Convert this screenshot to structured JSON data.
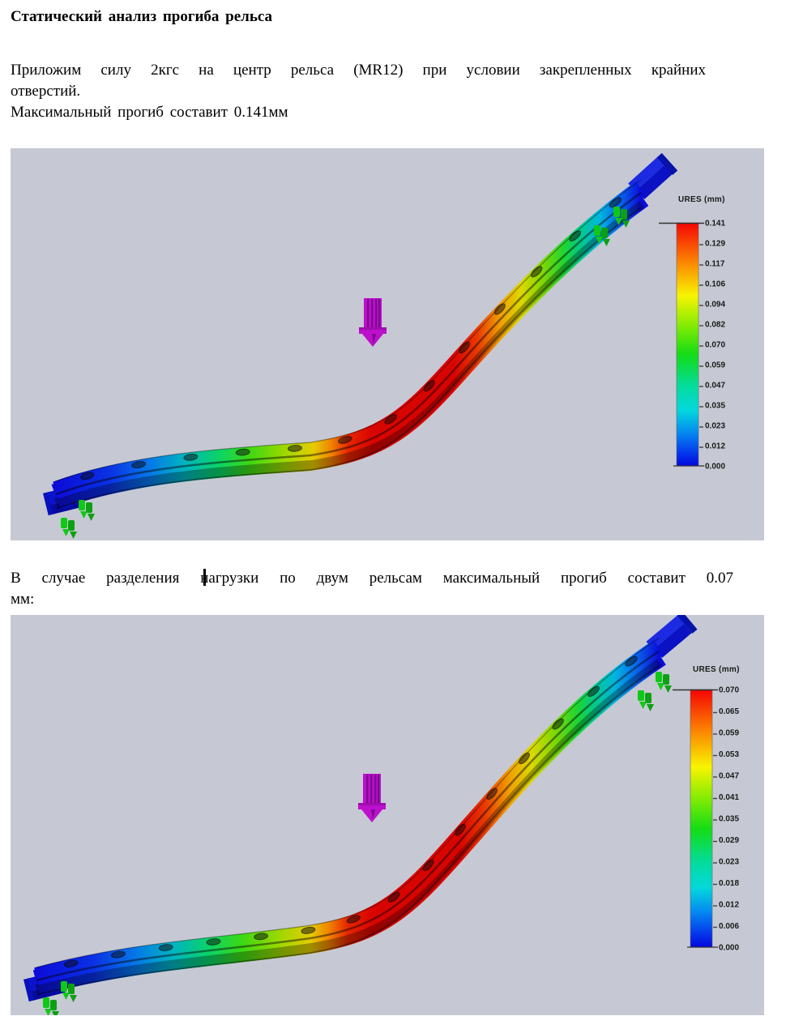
{
  "document": {
    "title": "Статический анализ прогиба рельса",
    "paragraph1": [
      "Приложим силу 2кгс на центр рельса (MR12) при условии закрепленных крайних",
      "отверстий.",
      "Максимальный прогиб составит 0.141мм"
    ],
    "paragraph2": [
      "В случае разделения нагрузки по двум рельсам максимальный прогиб составит 0.07",
      "мм:"
    ]
  },
  "fea_plots": [
    {
      "name": "single-rail-load",
      "legend_title": "URES (mm)",
      "legend_values": [
        "0.141",
        "0.129",
        "0.117",
        "0.106",
        "0.094",
        "0.082",
        "0.070",
        "0.059",
        "0.047",
        "0.035",
        "0.023",
        "0.012",
        "0.000"
      ],
      "max_deflection_mm": "0.141"
    },
    {
      "name": "load-split-two-rails",
      "legend_title": "URES (mm)",
      "legend_values": [
        "0.070",
        "0.065",
        "0.059",
        "0.053",
        "0.047",
        "0.041",
        "0.035",
        "0.029",
        "0.023",
        "0.018",
        "0.012",
        "0.006",
        "0.000"
      ],
      "max_deflection_mm": "0.070"
    }
  ],
  "colors": {
    "page_bg": "#ffffff",
    "text": "#000000",
    "plot_bg": "#c6c9d3",
    "legend_text": "#1a1a1a",
    "force_arrow": "#bc10cc",
    "force_arrow_dark": "#7e0a90",
    "fixture_green": "#10c818",
    "fixture_green_dark": "#0ca012",
    "end_cap_blue": "#0a14cc",
    "rail_spectrum": [
      [
        "0",
        "#0c0cd8"
      ],
      [
        "0.09",
        "#0a30e4"
      ],
      [
        "0.16",
        "#0678e8"
      ],
      [
        "0.22",
        "#00b4c0"
      ],
      [
        "0.28",
        "#0cd464"
      ],
      [
        "0.33",
        "#3cd814"
      ],
      [
        "0.39",
        "#9cd800"
      ],
      [
        "0.44",
        "#e4cc00"
      ],
      [
        "0.47",
        "#f08400"
      ],
      [
        "0.50",
        "#e62600"
      ],
      [
        "0.54",
        "#d80400"
      ],
      [
        "0.68",
        "#d80400"
      ],
      [
        "0.72",
        "#e83800"
      ],
      [
        "0.76",
        "#f0a000"
      ],
      [
        "0.795",
        "#dcd800"
      ],
      [
        "0.83",
        "#84d800"
      ],
      [
        "0.87",
        "#1cd434"
      ],
      [
        "0.90",
        "#00c894"
      ],
      [
        "0.93",
        "#00b4e0"
      ],
      [
        "0.965",
        "#0864ec"
      ],
      [
        "1",
        "#0c0cd8"
      ]
    ],
    "legend_gradient": [
      [
        "0",
        "#f40404"
      ],
      [
        "0.16",
        "#fc8400"
      ],
      [
        "0.30",
        "#f8f400"
      ],
      [
        "0.42",
        "#86ec04"
      ],
      [
        "0.54",
        "#14dc14"
      ],
      [
        "0.67",
        "#04dc9c"
      ],
      [
        "0.77",
        "#04d8dc"
      ],
      [
        "0.86",
        "#048cf0"
      ],
      [
        "0.95",
        "#0434ec"
      ],
      [
        "1",
        "#0408dc"
      ]
    ]
  }
}
